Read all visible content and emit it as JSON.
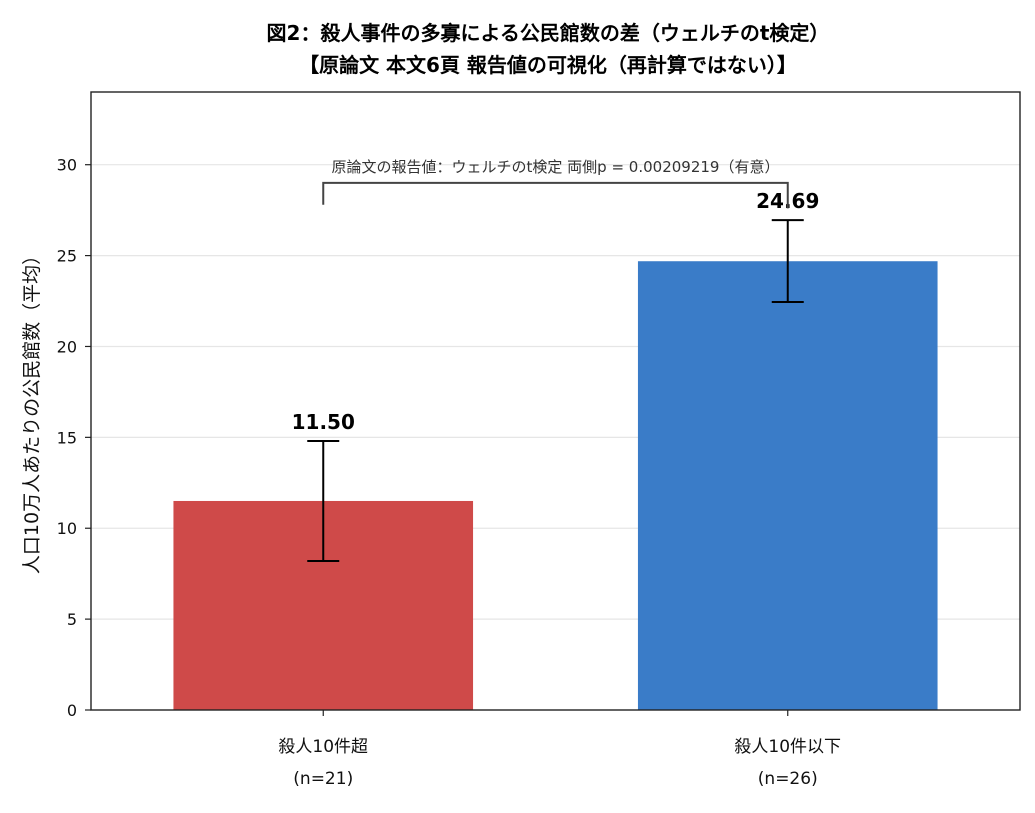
{
  "chart_data": {
    "type": "bar",
    "title": "図2：殺人事件の多寡による公民館数の差（ウェルチのt検定）",
    "subtitle": "【原論文 本文6頁 報告値の可視化（再計算ではない）】",
    "xlabel": "",
    "ylabel": "人口10万人あたりの公民館数（平均）",
    "ylim": [
      0,
      34
    ],
    "yticks": [
      0,
      5,
      10,
      15,
      20,
      25,
      30
    ],
    "grid": "y",
    "categories": [
      "殺人10件超",
      "殺人10件以下"
    ],
    "category_sublabels": [
      "(n=21)",
      "(n=26)"
    ],
    "values": [
      11.5,
      24.69
    ],
    "value_labels": [
      "11.50",
      "24.69"
    ],
    "error_low": [
      8.2,
      22.45
    ],
    "error_high": [
      14.8,
      26.95
    ],
    "colors": [
      "#cf4a49",
      "#3a7cc8"
    ],
    "annotation": "原論文の報告値：ウェルチのt検定 両側p = 0.00209219（有意）"
  }
}
